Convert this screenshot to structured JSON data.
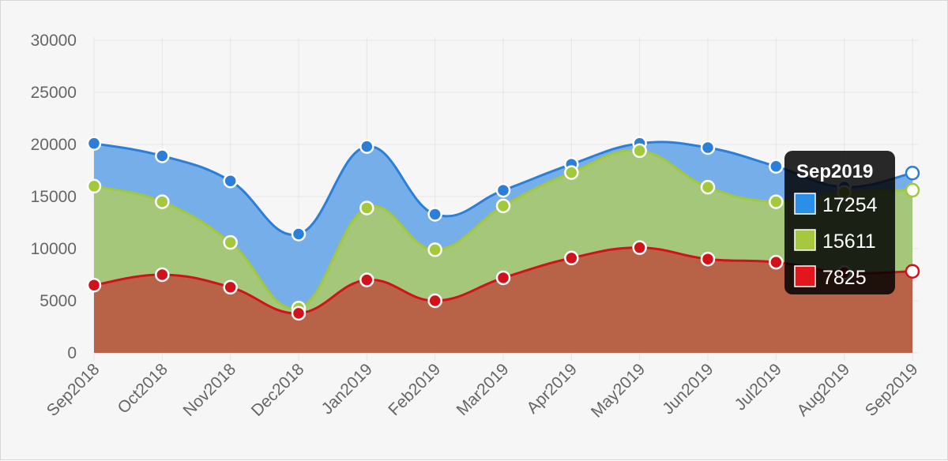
{
  "chart_data": {
    "type": "area",
    "stacked": false,
    "smooth": true,
    "categories": [
      "Sep2018",
      "Oct2018",
      "Nov2018",
      "Dec2018",
      "Jan2019",
      "Feb2019",
      "Mar2019",
      "Apr2019",
      "May2019",
      "Jun2019",
      "Jul2019",
      "Aug2019",
      "Sep2019"
    ],
    "ylim": [
      0,
      30000
    ],
    "yticks": [
      0,
      5000,
      10000,
      15000,
      20000,
      25000,
      30000
    ],
    "grid": true,
    "series": [
      {
        "color": "#2b7fd9",
        "fill": "#76aeea",
        "values": [
          20100,
          18900,
          16500,
          11400,
          19800,
          13300,
          15600,
          18100,
          20100,
          19700,
          17900,
          15900,
          17254
        ]
      },
      {
        "color": "#a2c83c",
        "fill": "#a5c77a",
        "values": [
          16000,
          14500,
          10600,
          4300,
          13900,
          9900,
          14100,
          17300,
          19400,
          15900,
          14500,
          15400,
          15611
        ]
      },
      {
        "color": "#d0131b",
        "fill": "#b86347",
        "values": [
          6500,
          7500,
          6300,
          3800,
          7000,
          5000,
          7200,
          9100,
          10100,
          9000,
          8700,
          7700,
          7825
        ]
      }
    ],
    "tooltip": {
      "title": "Sep2019",
      "items": [
        {
          "color": "#2b8ee8",
          "value": "17254"
        },
        {
          "color": "#a6c83f",
          "value": "15611"
        },
        {
          "color": "#e3161e",
          "value": "7825"
        }
      ]
    }
  }
}
